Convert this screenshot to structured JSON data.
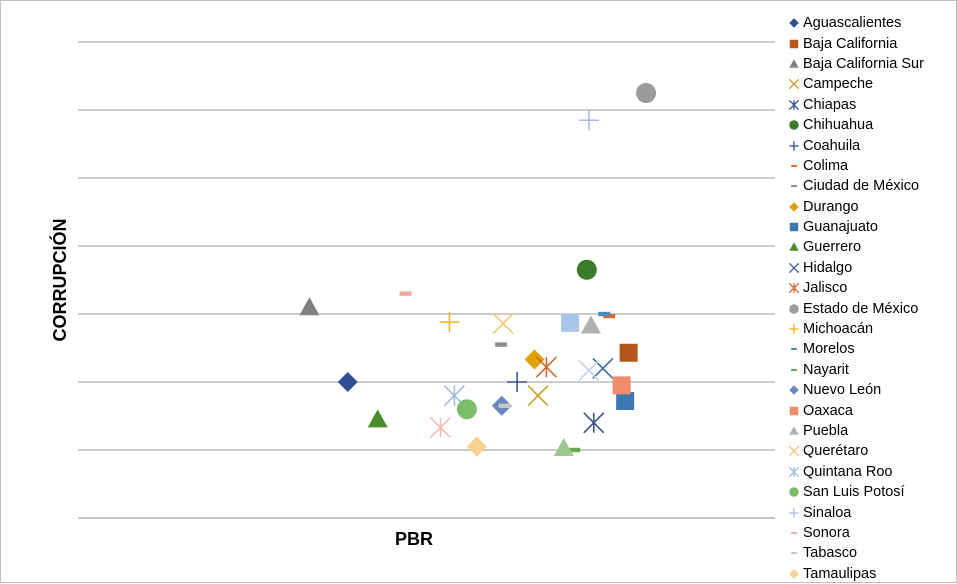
{
  "chart_data": {
    "type": "scatter",
    "title": "",
    "xlabel": "PBR",
    "ylabel": "CORRUPCIÓN",
    "grid": true,
    "legend_position": "right",
    "ylim": [
      0,
      7
    ],
    "xlim": [
      0,
      10
    ],
    "series": [
      {
        "name": "Aguascalientes",
        "marker": "diamond",
        "color": "#2f4f8f",
        "x": 3.87,
        "y": 2.0
      },
      {
        "name": "Baja California",
        "marker": "square",
        "color": "#b5551d",
        "x": 7.9,
        "y": 2.43
      },
      {
        "name": "Baja California Sur",
        "marker": "triangle",
        "color": "#7f7f7f",
        "x": 3.32,
        "y": 3.1
      },
      {
        "name": "Campeche",
        "marker": "x",
        "color": "#c9971a",
        "x": 6.6,
        "y": 1.8
      },
      {
        "name": "Chiapas",
        "marker": "asterisk",
        "color": "#2f4f8f",
        "x": 7.4,
        "y": 1.4
      },
      {
        "name": "Chihuahua",
        "marker": "circle",
        "color": "#3a7b2a",
        "x": 7.3,
        "y": 3.65
      },
      {
        "name": "Coahuila",
        "marker": "plus",
        "color": "#2f4f8f",
        "x": 6.3,
        "y": 2.0
      },
      {
        "name": "Colima",
        "marker": "dash",
        "color": "#e26b2a",
        "x": 7.62,
        "y": 2.97
      },
      {
        "name": "Ciudad de México",
        "marker": "dash",
        "color": "#8c8c8c",
        "x": 6.07,
        "y": 2.55
      },
      {
        "name": "Durango",
        "marker": "diamond",
        "color": "#e0a000",
        "x": 6.55,
        "y": 2.33
      },
      {
        "name": "Guanajuato",
        "marker": "square",
        "color": "#3e78b3",
        "x": 7.85,
        "y": 1.72
      },
      {
        "name": "Guerrero",
        "marker": "triangle",
        "color": "#4a8c2a",
        "x": 4.3,
        "y": 1.45
      },
      {
        "name": "Hidalgo",
        "marker": "x",
        "color": "#2f5fa0",
        "x": 7.53,
        "y": 2.2
      },
      {
        "name": "Jalisco",
        "marker": "asterisk",
        "color": "#d4622a",
        "x": 6.72,
        "y": 2.22
      },
      {
        "name": "Estado de México",
        "marker": "circle",
        "color": "#9b9b9b",
        "x": 8.15,
        "y": 6.25
      },
      {
        "name": "Michoacán",
        "marker": "plus",
        "color": "#f0b020",
        "x": 5.33,
        "y": 2.88
      },
      {
        "name": "Morelos",
        "marker": "dash",
        "color": "#4a8cc8",
        "x": 7.55,
        "y": 3.0
      },
      {
        "name": "Nayarit",
        "marker": "dash",
        "color": "#6aa84f",
        "x": 7.12,
        "y": 1.0
      },
      {
        "name": "Nuevo León",
        "marker": "diamond",
        "color": "#6a85c4",
        "x": 6.08,
        "y": 1.65
      },
      {
        "name": "Oaxaca",
        "marker": "square",
        "color": "#f08c6c",
        "x": 7.8,
        "y": 1.95
      },
      {
        "name": "Puebla",
        "marker": "triangle",
        "color": "#b0b0b0",
        "x": 7.36,
        "y": 2.83
      },
      {
        "name": "Querétaro",
        "marker": "x",
        "color": "#f5c16a",
        "x": 6.1,
        "y": 2.86
      },
      {
        "name": "Quintana Roo",
        "marker": "asterisk",
        "color": "#9bb8d8",
        "x": 5.4,
        "y": 1.8
      },
      {
        "name": "San Luis Potosí",
        "marker": "circle",
        "color": "#7cbd6a",
        "x": 5.58,
        "y": 1.6
      },
      {
        "name": "Sinaloa",
        "marker": "plus",
        "color": "#a8b8e0",
        "x": 7.33,
        "y": 5.85
      },
      {
        "name": "Sonora",
        "marker": "dash",
        "color": "#f4a8a0",
        "x": 4.7,
        "y": 3.3
      },
      {
        "name": "Tabasco",
        "marker": "dash",
        "color": "#c8c8c8",
        "x": 6.12,
        "y": 1.65
      },
      {
        "name": "Tamaulipas",
        "marker": "diamond",
        "color": "#f8d090",
        "x": 5.72,
        "y": 1.05
      }
    ],
    "extra_points": [
      {
        "marker": "asterisk",
        "color": "#f4b8b0",
        "x": 5.2,
        "y": 1.33
      },
      {
        "marker": "square",
        "color": "#a8c4e8",
        "x": 7.06,
        "y": 2.87
      },
      {
        "marker": "x",
        "color": "#c0d0ec",
        "x": 7.33,
        "y": 2.17
      },
      {
        "marker": "triangle",
        "color": "#9cc890",
        "x": 6.97,
        "y": 1.03
      }
    ]
  }
}
